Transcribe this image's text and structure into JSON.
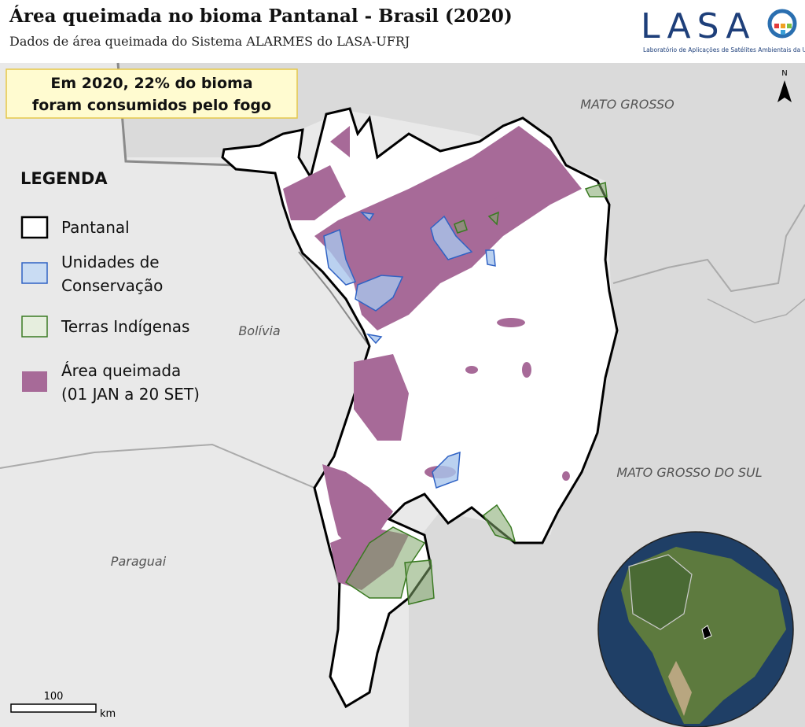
{
  "header": {
    "title": "Área queimada no bioma Pantanal - Brasil (2020)",
    "subtitle": "Dados de área queimada do Sistema ALARMES do LASA-UFRJ"
  },
  "logo": {
    "name": "LASA",
    "tagline": "Laboratório de Aplicações de Satélites Ambientais da UFRJ"
  },
  "callout": {
    "lines": [
      "Em 2020, 22% do bioma",
      "foram consumidos pelo fogo"
    ]
  },
  "legend": {
    "title": "LEGENDA",
    "items": [
      {
        "lines": [
          "Pantanal"
        ]
      },
      {
        "lines": [
          "Unidades de",
          "Conservação"
        ]
      },
      {
        "lines": [
          "Terras Indígenas"
        ]
      },
      {
        "lines": [
          "Área queimada",
          "(01 JAN a 20 SET)"
        ]
      }
    ]
  },
  "map_labels": {
    "mato_grosso": "MATO GROSSO",
    "bolivia": "Bolívia",
    "mato_grosso_do_sul": "MATO GROSSO DO SUL",
    "paraguai": "Paraguai"
  },
  "north": "N",
  "scale": {
    "value": 100,
    "unit": "km"
  }
}
